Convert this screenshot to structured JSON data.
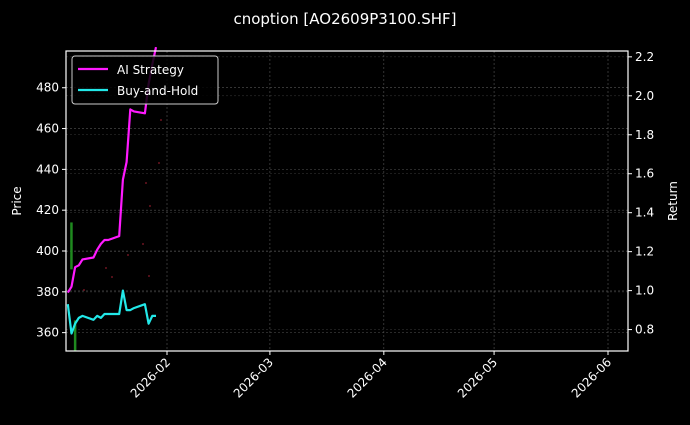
{
  "chart_data": {
    "type": "line",
    "title": "cnoption [AO2609P3100.SHF]",
    "xlabel": "",
    "ylabel": "Price",
    "ylabel_right": "Return",
    "ylim": [
      351,
      498
    ],
    "ylim_right": [
      0.69,
      2.23
    ],
    "yticks": [
      360,
      380,
      400,
      420,
      440,
      460,
      480
    ],
    "yticks_right": [
      "0.8",
      "1.0",
      "1.2",
      "1.4",
      "1.6",
      "1.8",
      "2.0",
      "2.2"
    ],
    "xticks": [
      "2026-02",
      "2026-03",
      "2026-04",
      "2026-05",
      "2026-06"
    ],
    "grid": true,
    "legend_position": "upper left",
    "legend": [
      "AI Strategy",
      "Buy-and-Hold"
    ],
    "colors": {
      "ai_strategy": "#ff1aff",
      "buy_and_hold": "#22e8e8",
      "price_bars": "#1f8a1f",
      "signal_dots": "#8b1a2a",
      "background": "#000000",
      "axis": "#ffffff",
      "grid": "#555555"
    },
    "series": [
      {
        "name": "AI Strategy",
        "axis": "right",
        "x": [
          "2026-01-05",
          "2026-01-06",
          "2026-01-07",
          "2026-01-08",
          "2026-01-09",
          "2026-01-12",
          "2026-01-13",
          "2026-01-14",
          "2026-01-15",
          "2026-01-16",
          "2026-01-19",
          "2026-01-20",
          "2026-01-21",
          "2026-01-22",
          "2026-01-23",
          "2026-01-26",
          "2026-01-27",
          "2026-01-28",
          "2026-01-29"
        ],
        "values": [
          0.99,
          1.02,
          1.12,
          1.13,
          1.16,
          1.17,
          1.21,
          1.24,
          1.26,
          1.26,
          1.28,
          1.57,
          1.66,
          1.93,
          1.92,
          1.91,
          2.06,
          2.16,
          2.25
        ]
      },
      {
        "name": "Buy-and-Hold",
        "axis": "right",
        "x": [
          "2026-01-05",
          "2026-01-06",
          "2026-01-07",
          "2026-01-08",
          "2026-01-09",
          "2026-01-12",
          "2026-01-13",
          "2026-01-14",
          "2026-01-15",
          "2026-01-16",
          "2026-01-19",
          "2026-01-20",
          "2026-01-21",
          "2026-01-22",
          "2026-01-23",
          "2026-01-26",
          "2026-01-27",
          "2026-01-28",
          "2026-01-29"
        ],
        "values": [
          0.93,
          0.78,
          0.83,
          0.86,
          0.87,
          0.85,
          0.87,
          0.86,
          0.88,
          0.88,
          0.88,
          1.0,
          0.9,
          0.9,
          0.91,
          0.93,
          0.83,
          0.87,
          0.87
        ]
      }
    ],
    "price_bars": [
      {
        "x": "2026-01-06",
        "low": 391,
        "high": 414
      },
      {
        "x": "2026-01-07",
        "low": 351,
        "high": 366
      }
    ]
  }
}
